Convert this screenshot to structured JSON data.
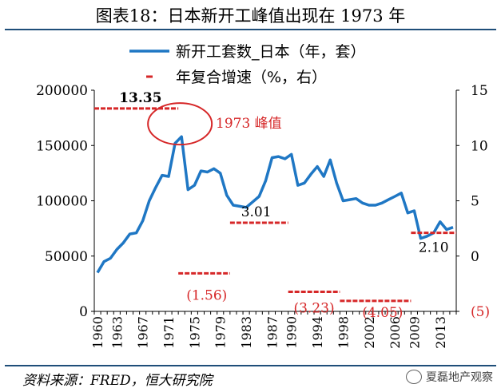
{
  "title": "图表18：日本新开工峰值出现在 1973 年",
  "source": "资料来源：FRED，恒大研究院",
  "watermark": "夏磊地产观察",
  "colors": {
    "line": "#1f77c4",
    "bar": "#d62728",
    "annotation": "#d62728",
    "rule": "#1f4e79"
  },
  "chart_data": {
    "type": "line",
    "legend": [
      {
        "name": "新开工套数_日本（年，套）",
        "style": "line",
        "axis": "left"
      },
      {
        "name": "年复合增速（%，右）",
        "style": "dash",
        "axis": "right"
      }
    ],
    "x_ticks": [
      "1960",
      "1963",
      "1967",
      "1971",
      "1975",
      "1979",
      "1983",
      "1987",
      "1990",
      "1994",
      "1998",
      "2002",
      "2006",
      "2009",
      "2013"
    ],
    "y_left": {
      "min": 0,
      "max": 200000,
      "ticks": [
        "0",
        "50000",
        "100000",
        "150000",
        "200000"
      ]
    },
    "y_right": {
      "min": -5,
      "max": 15,
      "ticks": [
        "(5)",
        "0",
        "5",
        "10",
        "15"
      ]
    },
    "series": [
      {
        "name": "新开工套数_日本（年，套）",
        "axis": "left",
        "x": [
          1960,
          1961,
          1962,
          1963,
          1964,
          1965,
          1966,
          1967,
          1968,
          1969,
          1970,
          1971,
          1972,
          1973,
          1974,
          1975,
          1976,
          1977,
          1978,
          1979,
          1980,
          1981,
          1982,
          1983,
          1984,
          1985,
          1986,
          1987,
          1988,
          1989,
          1990,
          1991,
          1992,
          1993,
          1994,
          1995,
          1996,
          1997,
          1998,
          1999,
          2000,
          2001,
          2002,
          2003,
          2004,
          2005,
          2006,
          2007,
          2008,
          2009,
          2010,
          2011,
          2012,
          2013,
          2014,
          2015
        ],
        "values": [
          35000,
          45000,
          48000,
          56000,
          62000,
          70000,
          71000,
          82000,
          100000,
          112000,
          123000,
          122000,
          152000,
          158000,
          110000,
          114000,
          127000,
          126000,
          129000,
          125000,
          105000,
          96000,
          95000,
          94000,
          99000,
          104000,
          118000,
          139000,
          140000,
          138000,
          142000,
          114000,
          116000,
          124000,
          131000,
          122000,
          137000,
          116000,
          100000,
          101000,
          102000,
          98000,
          96000,
          96000,
          98000,
          101000,
          104000,
          107000,
          89000,
          91000,
          66000,
          68000,
          71000,
          81000,
          74000,
          76000
        ]
      },
      {
        "name": "年复合增速（%，右）",
        "axis": "right",
        "segments": [
          {
            "from": 1960,
            "to": 1973,
            "value": 13.35,
            "label": "13.35"
          },
          {
            "from": 1973,
            "to": 1981,
            "value": -1.56,
            "label": "(1.56)"
          },
          {
            "from": 1981,
            "to": 1990,
            "value": 3.01,
            "label": "3.01"
          },
          {
            "from": 1990,
            "to": 1998,
            "value": -3.23,
            "label": "(3.23)"
          },
          {
            "from": 1998,
            "to": 2009,
            "value": -4.05,
            "label": "(4.05)"
          },
          {
            "from": 2009,
            "to": 2016,
            "value": 2.1,
            "label": "2.10"
          }
        ]
      }
    ],
    "annotations": [
      {
        "text": "1973 峰值",
        "year": 1973
      }
    ]
  }
}
